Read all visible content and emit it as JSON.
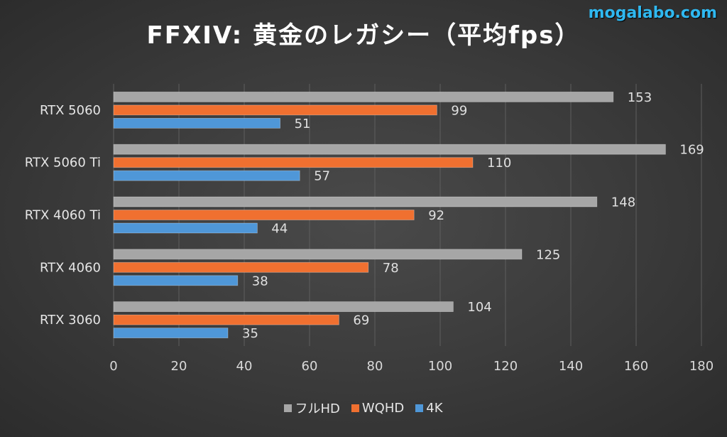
{
  "watermark": "mogalabo.com",
  "chart_data": {
    "type": "bar",
    "orientation": "horizontal",
    "title": "FFXIV: 黄金のレガシー（平均fps）",
    "categories": [
      "RTX 5060",
      "RTX 5060 Ti",
      "RTX 4060 Ti",
      "RTX 4060",
      "RTX 3060"
    ],
    "series": [
      {
        "name": "フルHD",
        "color": "#a6a6a6",
        "values": [
          153,
          169,
          148,
          125,
          104
        ]
      },
      {
        "name": "WQHD",
        "color": "#f07030",
        "values": [
          99,
          110,
          92,
          78,
          69
        ]
      },
      {
        "name": "4K",
        "color": "#4f97d8",
        "values": [
          51,
          57,
          44,
          38,
          35
        ]
      }
    ],
    "xlim": [
      0,
      180
    ],
    "xticks": [
      0,
      20,
      40,
      60,
      80,
      100,
      120,
      140,
      160,
      180
    ],
    "grid": true,
    "legend_position": "bottom"
  }
}
